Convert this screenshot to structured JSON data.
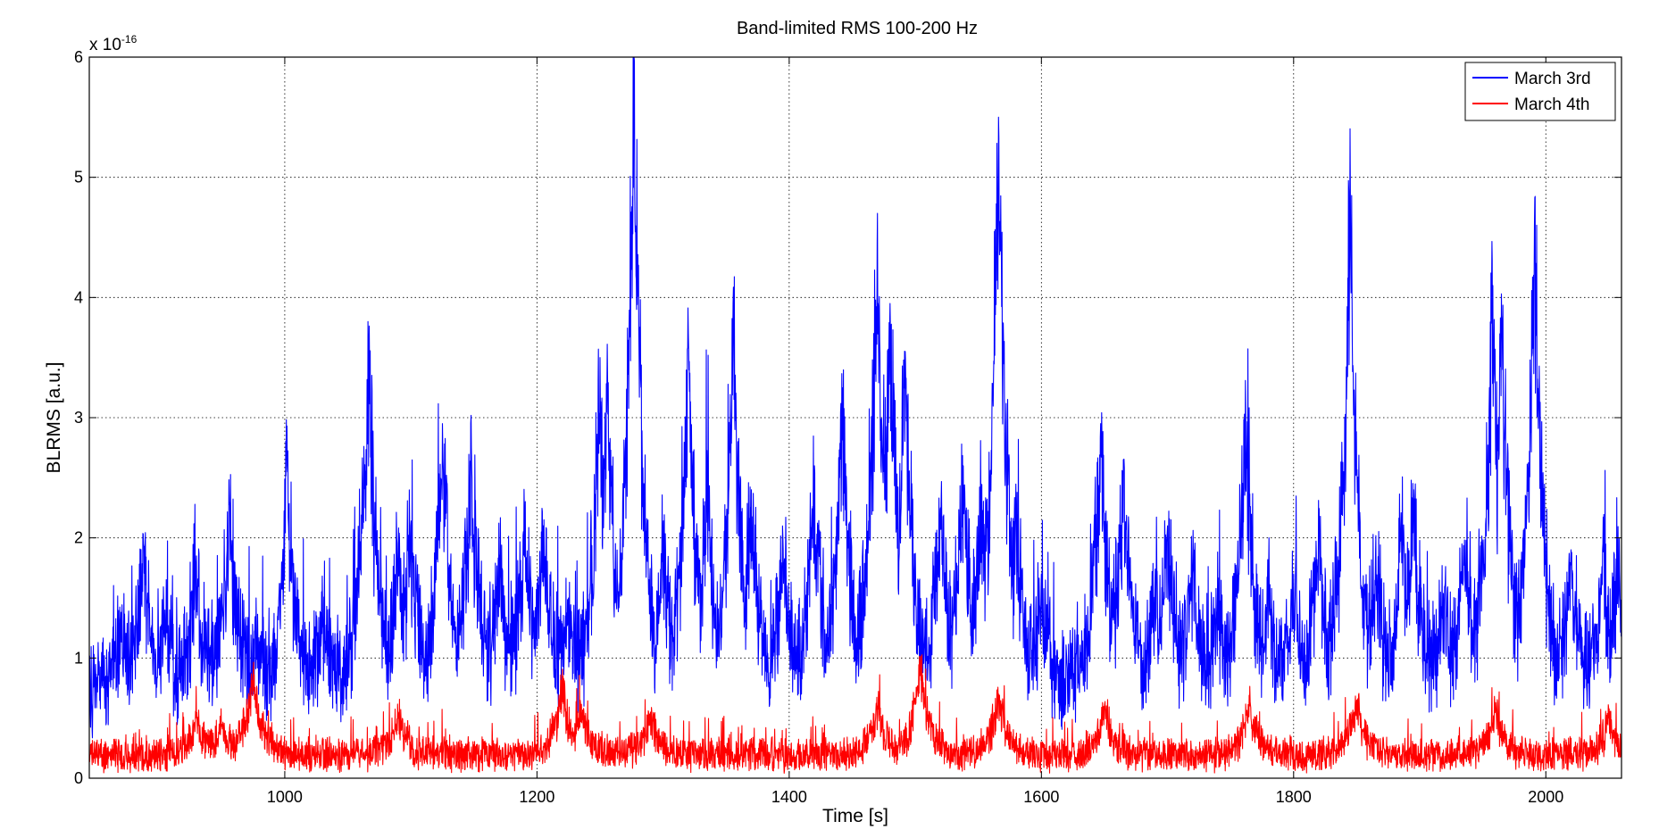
{
  "chart_data": {
    "type": "line",
    "title": "Band-limited RMS 100-200 Hz",
    "xlabel": "Time [s]",
    "ylabel": "BLRMS [a.u.]",
    "xlim": [
      845,
      2060
    ],
    "ylim": [
      0,
      6
    ],
    "y_multiplier": {
      "base": "x 10",
      "exponent": "-16"
    },
    "xticks": [
      1000,
      1200,
      1400,
      1600,
      1800,
      2000
    ],
    "xtick_labels": [
      "1000",
      "1200",
      "1400",
      "1600",
      "1800",
      "2000"
    ],
    "yticks": [
      0,
      1,
      2,
      3,
      4,
      5,
      6
    ],
    "ytick_labels": [
      "0",
      "1",
      "2",
      "3",
      "4",
      "5",
      "6"
    ],
    "grid": true,
    "legend_position": "top-right",
    "series": [
      {
        "name": "March 3rd",
        "color": "#0000ff",
        "baseline": 0.75,
        "noise": 0.35,
        "peaks": [
          [
            870,
            1.3
          ],
          [
            888,
            1.95
          ],
          [
            905,
            1.4
          ],
          [
            930,
            1.85
          ],
          [
            956,
            2.3
          ],
          [
            978,
            1.1
          ],
          [
            1002,
            2.6
          ],
          [
            1030,
            1.4
          ],
          [
            1066,
            3.8
          ],
          [
            1090,
            1.9
          ],
          [
            1100,
            2.1
          ],
          [
            1125,
            2.95
          ],
          [
            1148,
            2.75
          ],
          [
            1170,
            1.8
          ],
          [
            1190,
            2.2
          ],
          [
            1205,
            2.1
          ],
          [
            1225,
            1.5
          ],
          [
            1250,
            3.5
          ],
          [
            1256,
            3.3
          ],
          [
            1277,
            6.0
          ],
          [
            1279,
            3.9
          ],
          [
            1300,
            2.0
          ],
          [
            1320,
            3.7
          ],
          [
            1335,
            2.6
          ],
          [
            1356,
            3.75
          ],
          [
            1370,
            2.4
          ],
          [
            1395,
            2.0
          ],
          [
            1420,
            2.6
          ],
          [
            1442,
            3.05
          ],
          [
            1470,
            4.7
          ],
          [
            1480,
            3.95
          ],
          [
            1492,
            3.55
          ],
          [
            1520,
            2.25
          ],
          [
            1538,
            2.6
          ],
          [
            1552,
            2.4
          ],
          [
            1566,
            5.5
          ],
          [
            1580,
            2.2
          ],
          [
            1600,
            1.7
          ],
          [
            1647,
            2.95
          ],
          [
            1665,
            2.65
          ],
          [
            1690,
            1.6
          ],
          [
            1700,
            2.1
          ],
          [
            1720,
            1.8
          ],
          [
            1740,
            1.5
          ],
          [
            1762,
            3.1
          ],
          [
            1780,
            1.6
          ],
          [
            1800,
            1.7
          ],
          [
            1820,
            2.0
          ],
          [
            1845,
            4.95
          ],
          [
            1865,
            1.9
          ],
          [
            1885,
            2.1
          ],
          [
            1895,
            2.4
          ],
          [
            1920,
            1.6
          ],
          [
            1935,
            1.9
          ],
          [
            1958,
            4.1
          ],
          [
            1965,
            3.85
          ],
          [
            1991,
            4.6
          ],
          [
            2020,
            1.9
          ],
          [
            2045,
            1.9
          ],
          [
            2057,
            1.85
          ]
        ]
      },
      {
        "name": "March 4th",
        "color": "#ff0000",
        "baseline": 0.2,
        "noise": 0.12,
        "peaks": [
          [
            930,
            0.5
          ],
          [
            950,
            0.45
          ],
          [
            975,
            0.9
          ],
          [
            1090,
            0.55
          ],
          [
            1220,
            0.8
          ],
          [
            1235,
            0.6
          ],
          [
            1290,
            0.55
          ],
          [
            1470,
            0.6
          ],
          [
            1504,
            0.98
          ],
          [
            1566,
            0.7
          ],
          [
            1650,
            0.6
          ],
          [
            1765,
            0.6
          ],
          [
            1850,
            0.65
          ],
          [
            1960,
            0.6
          ],
          [
            2050,
            0.5
          ]
        ]
      }
    ]
  }
}
